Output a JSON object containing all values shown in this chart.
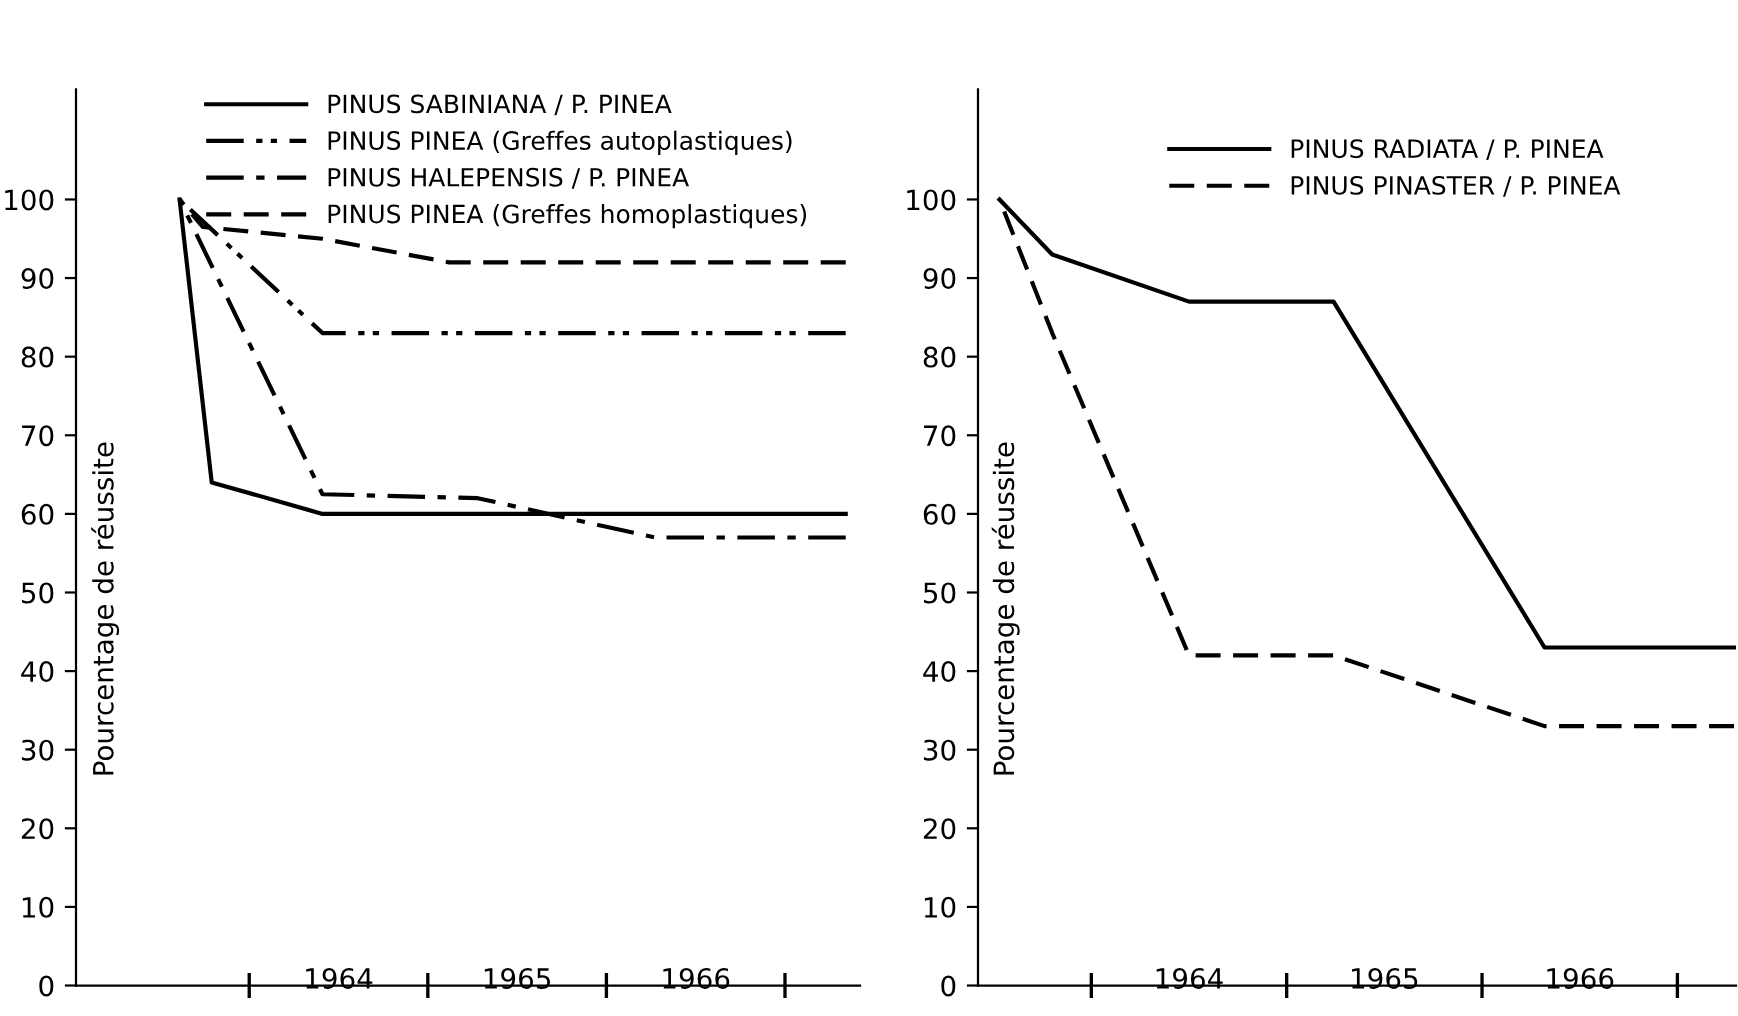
{
  "chart_data": [
    {
      "type": "line",
      "ylabel": "Pourcentage de réussite",
      "ylim": [
        0,
        114
      ],
      "yticks": [
        0,
        10,
        20,
        30,
        40,
        50,
        60,
        70,
        80,
        90,
        100
      ],
      "xlim": [
        1963.03,
        1967.42
      ],
      "xticks": [
        {
          "value": 1964,
          "label": null
        },
        {
          "value": 1964.5,
          "label": "1964"
        },
        {
          "value": 1965,
          "label": null
        },
        {
          "value": 1965.5,
          "label": "1965"
        },
        {
          "value": 1966,
          "label": null
        },
        {
          "value": 1966.5,
          "label": "1966"
        },
        {
          "value": 1967,
          "label": null
        }
      ],
      "grid": false,
      "legend": "top",
      "marker": "none",
      "tick_labels": "y",
      "series": [
        {
          "name": "PINUS SABINIANA / P. PINEA",
          "color": "#000000",
          "line_style": "solid",
          "x": [
            1963.61,
            1963.79,
            1964.41,
            1967.34
          ],
          "values": [
            100,
            64,
            60,
            60
          ]
        },
        {
          "name": "PINUS PINEA (Greffes autoplastiques)",
          "color": "#000000",
          "line_style": "dashdotdot",
          "x": [
            1963.61,
            1964.41,
            1967.34
          ],
          "values": [
            100,
            83,
            83
          ]
        },
        {
          "name": "PINUS HALEPENSIS / P. PINEA",
          "color": "#000000",
          "line_style": "dashdot",
          "x": [
            1963.61,
            1964.41,
            1965.28,
            1966.27,
            1967.34
          ],
          "values": [
            100,
            62.5,
            62,
            57,
            57
          ]
        },
        {
          "name": "PINUS PINEA (Greffes homoplastiques)",
          "color": "#000000",
          "line_style": "dashed",
          "x": [
            1963.61,
            1963.74,
            1964.41,
            1965.12,
            1967.34
          ],
          "values": [
            100,
            96.5,
            95,
            92,
            92
          ]
        }
      ]
    },
    {
      "type": "line",
      "ylabel": "Pourcentage de réussite",
      "ylim": [
        0,
        114
      ],
      "yticks": [
        0,
        10,
        20,
        30,
        40,
        50,
        60,
        70,
        80,
        90,
        100
      ],
      "xlim": [
        1963.42,
        1967.3
      ],
      "xticks": [
        {
          "value": 1964,
          "label": null
        },
        {
          "value": 1964.5,
          "label": "1964"
        },
        {
          "value": 1965,
          "label": null
        },
        {
          "value": 1965.5,
          "label": "1965"
        },
        {
          "value": 1966,
          "label": null
        },
        {
          "value": 1966.5,
          "label": "1966"
        },
        {
          "value": 1967,
          "label": null
        }
      ],
      "grid": false,
      "legend": "top",
      "marker": "none",
      "tick_labels": "y",
      "series": [
        {
          "name": "PINUS RADIATA / P. PINEA",
          "color": "#000000",
          "line_style": "solid",
          "x": [
            1963.53,
            1963.8,
            1964.5,
            1965.24,
            1966.32,
            1967.29
          ],
          "values": [
            100,
            93,
            87,
            87,
            43,
            43
          ]
        },
        {
          "name": "PINUS PINASTER / P. PINEA",
          "color": "#000000",
          "line_style": "dashed",
          "x": [
            1963.53,
            1963.8,
            1964.5,
            1965.24,
            1966.32,
            1967.29
          ],
          "values": [
            100,
            83,
            42,
            42,
            33,
            33
          ]
        }
      ]
    }
  ]
}
